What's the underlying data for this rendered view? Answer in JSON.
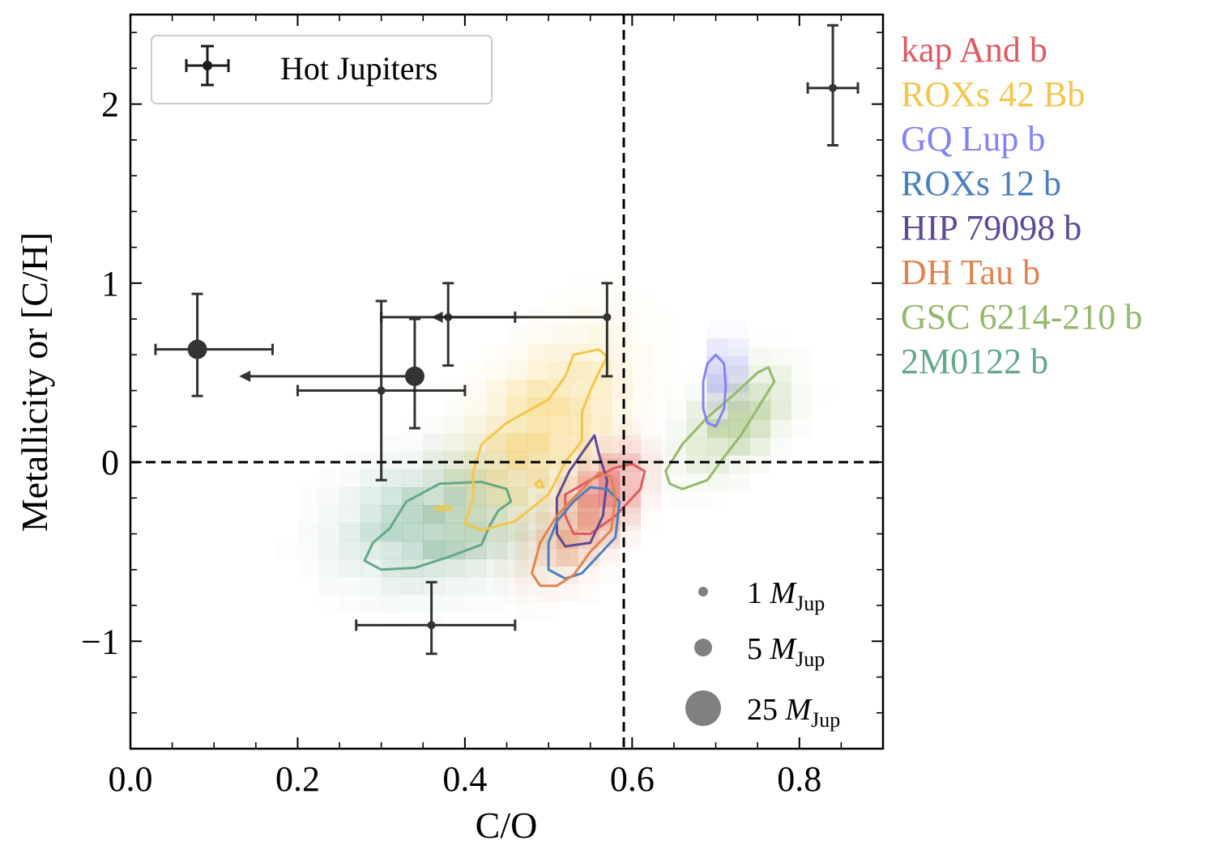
{
  "chart_data": {
    "type": "scatter",
    "xlabel": "C/O",
    "ylabel": "Metallicity or [C/H]",
    "xlim": [
      0.0,
      0.9
    ],
    "ylim": [
      -1.6,
      2.5
    ],
    "xticks": [
      0.0,
      0.2,
      0.4,
      0.6,
      0.8
    ],
    "xtick_labels": [
      "0.0",
      "0.2",
      "0.4",
      "0.6",
      "0.8"
    ],
    "yticks": [
      -1,
      0,
      1,
      2
    ],
    "ytick_labels": [
      "−1",
      "0",
      "1",
      "2"
    ],
    "reference_lines": {
      "x": 0.59,
      "y": 0.0,
      "style": "dashed"
    },
    "legend": {
      "label": "Hot Jupiters",
      "placement": "top-left"
    },
    "hot_jupiters": [
      {
        "x": 0.08,
        "y": 0.63,
        "xerr": [
          0.05,
          0.09
        ],
        "yerr": [
          0.26,
          0.31
        ],
        "size": 25
      },
      {
        "x": 0.34,
        "y": 0.48,
        "xerr": [
          0.0,
          0.0
        ],
        "yerr": [
          0.29,
          0.32
        ],
        "size": 25,
        "x_upper_limit_to": 0.13
      },
      {
        "x": 0.3,
        "y": 0.4,
        "xerr": [
          0.1,
          0.1
        ],
        "yerr": [
          0.5,
          0.5
        ],
        "size": 1
      },
      {
        "x": 0.38,
        "y": 0.81,
        "xerr": [
          0.0,
          0.08
        ],
        "yerr": [
          0.27,
          0.19
        ],
        "size": 1,
        "x_upper_limit_to": 0.36
      },
      {
        "x": 0.57,
        "y": 0.81,
        "xerr": [
          0.27,
          0.0
        ],
        "yerr": [
          0.33,
          0.19
        ],
        "size": 1
      },
      {
        "x": 0.36,
        "y": -0.91,
        "xerr": [
          0.09,
          0.1
        ],
        "yerr": [
          0.16,
          0.24
        ],
        "size": 1
      },
      {
        "x": 0.84,
        "y": 2.09,
        "xerr": [
          0.03,
          0.03
        ],
        "yerr": [
          0.32,
          0.35
        ],
        "size": 1
      }
    ],
    "series": [
      {
        "name": "kap And b",
        "color": "#e05a64",
        "center": [
          0.56,
          -0.25
        ]
      },
      {
        "name": "ROXs 42 Bb",
        "color": "#f2c64c",
        "center": [
          0.48,
          0.1
        ]
      },
      {
        "name": "GQ Lup b",
        "color": "#8482f5",
        "center": [
          0.7,
          0.45
        ]
      },
      {
        "name": "ROXs 12 b",
        "color": "#4a80c0",
        "center": [
          0.53,
          -0.4
        ]
      },
      {
        "name": "HIP 79098 b",
        "color": "#5e4a96",
        "center": [
          0.54,
          -0.15
        ]
      },
      {
        "name": "DH Tau b",
        "color": "#e08450",
        "center": [
          0.53,
          -0.4
        ]
      },
      {
        "name": "GSC 6214-210 b",
        "color": "#95b96c",
        "center": [
          0.71,
          0.18
        ]
      },
      {
        "name": "2M0122 b",
        "color": "#65a88a",
        "center": [
          0.36,
          -0.4
        ]
      }
    ],
    "mass_legend": [
      {
        "value": "1",
        "symbol": "M",
        "subscript": "Jup",
        "size": 1
      },
      {
        "value": "5",
        "symbol": "M",
        "subscript": "Jup",
        "size": 5
      },
      {
        "value": "25",
        "symbol": "M",
        "subscript": "Jup",
        "size": 25
      }
    ]
  }
}
